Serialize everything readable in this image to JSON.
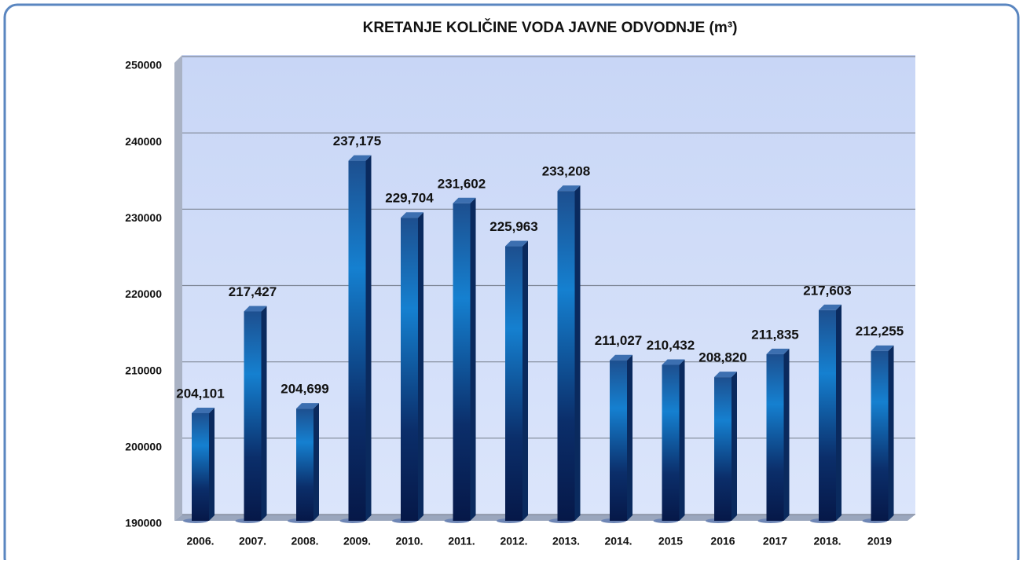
{
  "chart_data": {
    "type": "bar",
    "title": "KRETANJE KOLIČINE VODA JAVNE ODVODNJE (m³)",
    "categories": [
      "2006.",
      "2007.",
      "2008.",
      "2009.",
      "2010.",
      "2011.",
      "2012.",
      "2013.",
      "2014.",
      "2015",
      "2016",
      "2017",
      "2018.",
      "2019"
    ],
    "values": [
      204101,
      217427,
      204699,
      237175,
      229704,
      231602,
      225963,
      233208,
      211027,
      210432,
      208820,
      211835,
      217603,
      212255
    ],
    "value_labels": [
      "204,101",
      "217,427",
      "204,699",
      "237,175",
      "229,704",
      "231,602",
      "225,963",
      "233,208",
      "211,027",
      "210,432",
      "208,820",
      "211,835",
      "217,603",
      "212,255"
    ],
    "color": "#1470c0",
    "ylim": [
      190000,
      250000
    ],
    "yticks": [
      190000,
      200000,
      210000,
      220000,
      230000,
      240000,
      250000
    ],
    "grid": true
  }
}
